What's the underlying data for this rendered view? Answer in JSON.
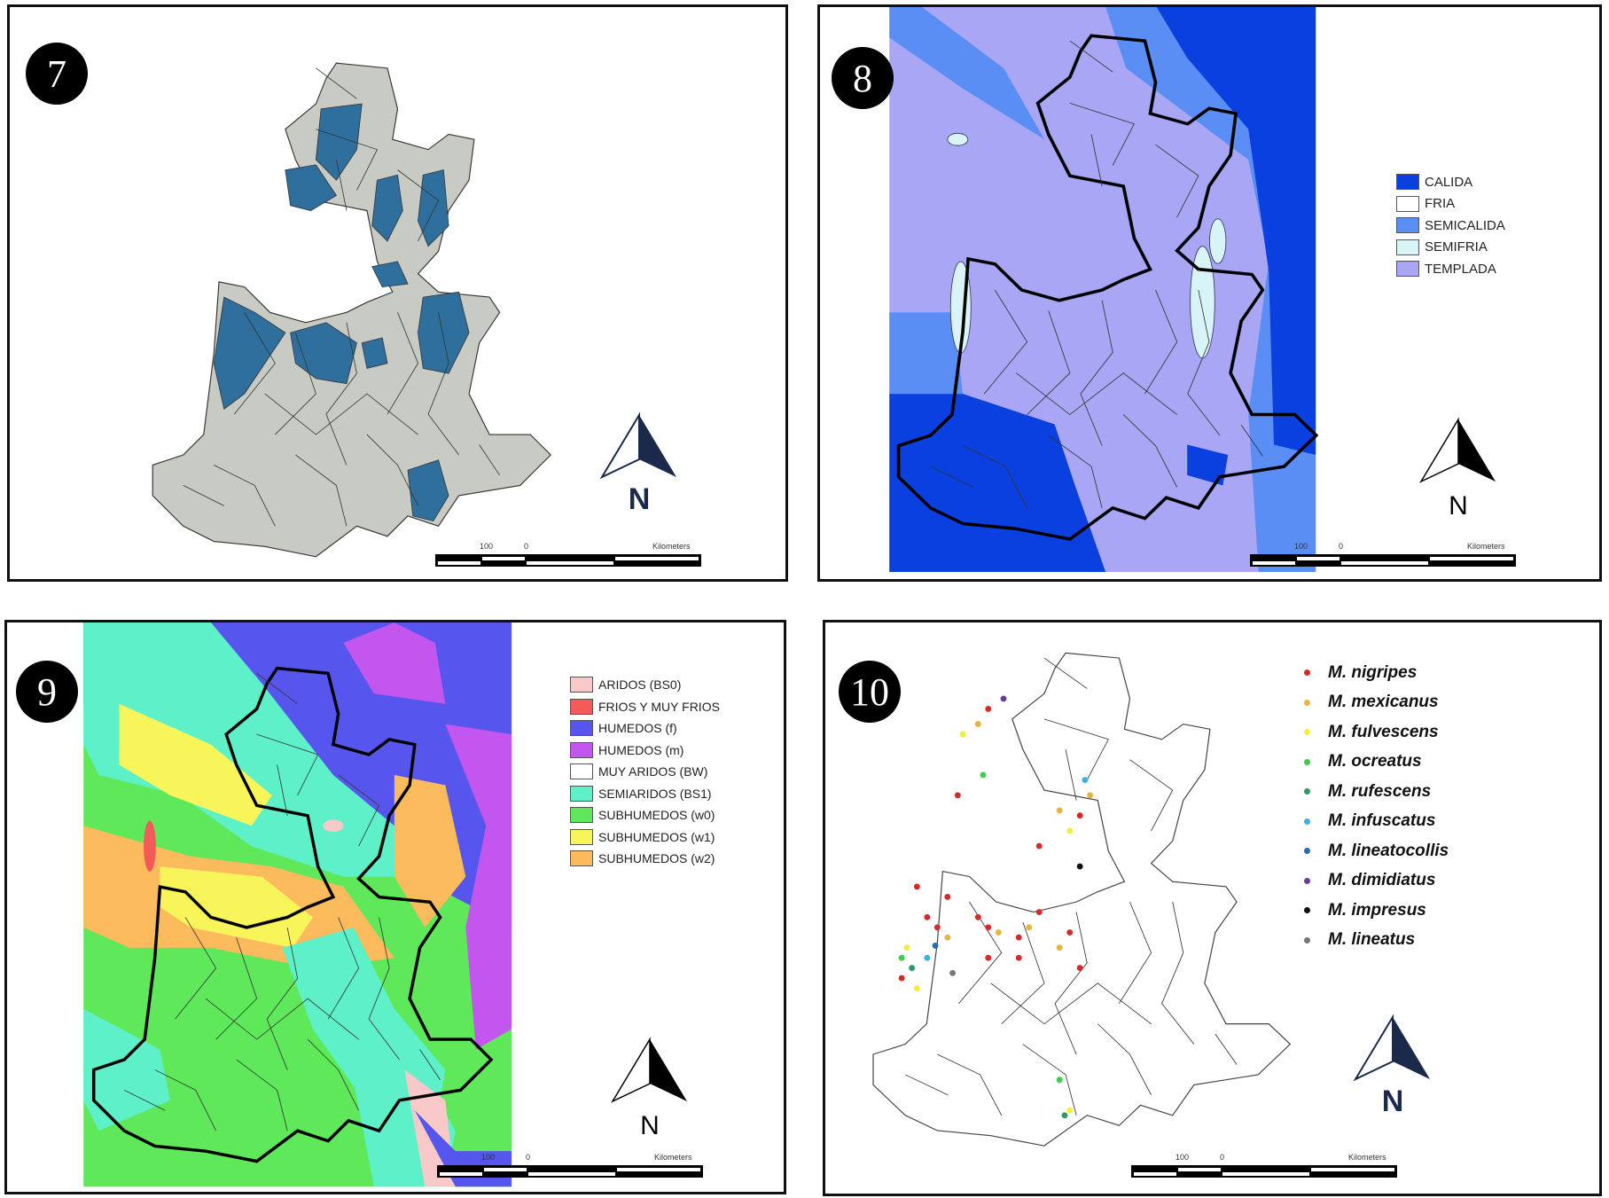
{
  "panels": {
    "p7": {
      "number": "7"
    },
    "p8": {
      "number": "8",
      "legend": [
        {
          "label": "CALIDA",
          "color": "#0a3fe0"
        },
        {
          "label": "FRIA",
          "color": "#ffffff"
        },
        {
          "label": "SEMICALIDA",
          "color": "#5b8ef5"
        },
        {
          "label": "SEMIFRIA",
          "color": "#d8f4f6"
        },
        {
          "label": "TEMPLADA",
          "color": "#a9a6f5"
        }
      ]
    },
    "p9": {
      "number": "9",
      "legend": [
        {
          "label": "ARIDOS (BS0)",
          "color": "#f9c9c9"
        },
        {
          "label": "FRIOS Y MUY FRIOS",
          "color": "#f45a5a"
        },
        {
          "label": "HUMEDOS (f)",
          "color": "#5656ee"
        },
        {
          "label": "HUMEDOS (m)",
          "color": "#c256ee"
        },
        {
          "label": "MUY ARIDOS (BW)",
          "color": "#ffffff"
        },
        {
          "label": "SEMIARIDOS (BS1)",
          "color": "#5ef0c8"
        },
        {
          "label": "SUBHUMEDOS (w0)",
          "color": "#5ee85a"
        },
        {
          "label": "SUBHUMEDOS (w1)",
          "color": "#f8f55a"
        },
        {
          "label": "SUBHUMEDOS (w2)",
          "color": "#fbbb5c"
        }
      ]
    },
    "p10": {
      "number": "10",
      "legend": [
        {
          "label": "M. nigripes",
          "color": "#d42a2a"
        },
        {
          "label": "M. mexicanus",
          "color": "#e8b440"
        },
        {
          "label": "M. fulvescens",
          "color": "#f2ee3c"
        },
        {
          "label": "M. ocreatus",
          "color": "#3ccf4a"
        },
        {
          "label": "M. rufescens",
          "color": "#2a9a6a"
        },
        {
          "label": "M. infuscatus",
          "color": "#3cb0e0"
        },
        {
          "label": "M. lineatocollis",
          "color": "#2a6ab0"
        },
        {
          "label": "M. dimidiatus",
          "color": "#6a3a9a"
        },
        {
          "label": "M. impresus",
          "color": "#111111"
        },
        {
          "label": "M. lineatus",
          "color": "#777777"
        }
      ]
    }
  },
  "map_fill_7": {
    "base": "#c8cbc4",
    "highlight": "#2e6f9e"
  },
  "north_label": "N",
  "scale": {
    "left": "100",
    "zero": "0",
    "unit": "Kilometers"
  }
}
